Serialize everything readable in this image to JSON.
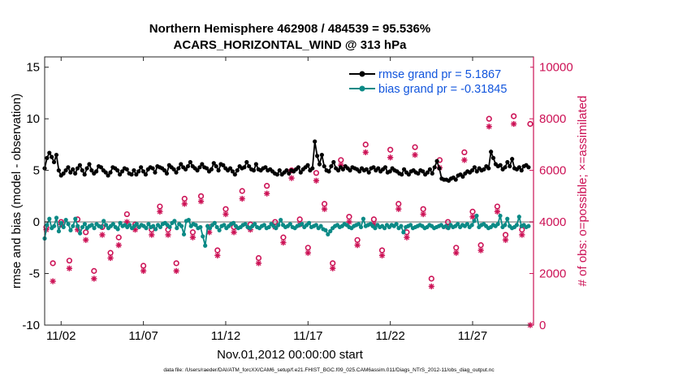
{
  "chart_data": {
    "type": "line",
    "title": "Northern Hemisphere 462908 / 484539 = 95.536%",
    "subtitle": "ACARS_HORIZONTAL_WIND @ 313 hPa",
    "xlabel": "Nov.01,2012 00:00:00 start",
    "ylabel_left": "rmse and bias (model - observation)",
    "ylabel_right": "# of obs: o=possible; ×=assimilated",
    "footer": "data file: /Users/raeder/DAI/ATM_forcXX/CAM6_setup/f.e21.FHIST_BGC.f09_025.CAM6assim.011/Diags_NTrS_2012-11/obs_diag_output.nc",
    "xlim": [
      0.5,
      30.2
    ],
    "ylim_left": [
      -10,
      16
    ],
    "ylim_right": [
      0,
      10400
    ],
    "x_ticks": [
      1.5,
      6.5,
      11.5,
      16.5,
      21.5,
      26.5
    ],
    "x_tick_labels": [
      "11/02",
      "11/07",
      "11/12",
      "11/17",
      "11/22",
      "11/27"
    ],
    "y_left_ticks": [
      -10,
      -5,
      0,
      5,
      10,
      15
    ],
    "y_left_tick_labels": [
      "-10",
      "-5",
      "0",
      "5",
      "10",
      "15"
    ],
    "y_right_ticks": [
      0,
      2000,
      4000,
      6000,
      8000,
      10000
    ],
    "y_right_tick_labels": [
      "0",
      "2000",
      "4000",
      "6000",
      "8000",
      "10000"
    ],
    "zero_line": 0,
    "legend_position": "top-right",
    "colors": {
      "rmse": "#000000",
      "bias": "#0b8a86",
      "obs": "#cc1155",
      "zero": "#b0b0b0"
    },
    "series": [
      {
        "name": "rmse grand pr = 5.1867",
        "key": "rmse",
        "values": [
          5.2,
          6.2,
          6.7,
          6.3,
          5.8,
          6.5,
          5.0,
          4.5,
          4.7,
          5.0,
          5.3,
          4.8,
          5.1,
          4.7,
          5.2,
          5.5,
          5.0,
          4.6,
          5.2,
          5.6,
          5.0,
          4.7,
          4.9,
          5.4,
          5.3,
          5.0,
          4.8,
          4.5,
          4.8,
          5.3,
          5.2,
          5.0,
          4.6,
          4.9,
          5.2,
          5.1,
          4.7,
          4.6,
          5.0,
          4.6,
          4.9,
          5.3,
          4.9,
          4.6,
          5.1,
          5.3,
          5.2,
          4.8,
          5.4,
          5.3,
          5.2,
          5.0,
          4.7,
          5.5,
          5.3,
          5.1,
          4.8,
          5.2,
          5.6,
          5.3,
          5.1,
          5.4,
          5.8,
          5.4,
          5.2,
          5.0,
          5.3,
          5.6,
          5.3,
          5.2,
          4.9,
          5.1,
          5.7,
          5.4,
          5.0,
          5.6,
          5.5,
          5.2,
          5.0,
          5.2,
          4.9,
          4.6,
          5.0,
          5.4,
          5.2,
          5.3,
          5.8,
          5.4,
          5.1,
          5.0,
          5.6,
          5.1,
          5.0,
          5.2,
          5.3,
          5.0,
          5.1,
          4.9,
          4.7,
          4.6,
          5.0,
          4.6,
          4.8,
          5.0,
          4.7,
          5.0,
          4.9,
          5.1,
          5.3,
          4.8,
          5.1,
          5.3,
          5.5,
          5.0,
          5.2,
          7.8,
          6.4,
          5.6,
          6.5,
          5.4,
          5.0,
          4.9,
          5.4,
          5.8,
          5.2,
          5.0,
          5.3,
          5.1,
          5.4,
          5.2,
          5.0,
          5.3,
          5.2,
          5.1,
          4.9,
          5.2,
          5.0,
          5.1,
          4.8,
          5.2,
          5.3,
          5.0,
          5.2,
          4.9,
          5.1,
          5.3,
          4.8,
          4.9,
          5.2,
          5.0,
          4.9,
          4.7,
          4.6,
          5.1,
          4.8,
          4.6,
          4.9,
          5.0,
          4.8,
          4.7,
          5.0,
          4.9,
          4.6,
          4.8,
          5.1,
          4.7,
          5.3,
          5.9,
          5.2,
          4.2,
          4.1,
          4.1,
          4.0,
          4.2,
          4.3,
          4.1,
          4.5,
          4.6,
          4.4,
          4.7,
          4.9,
          4.8,
          5.0,
          5.3,
          4.9,
          5.2,
          5.0,
          5.1,
          5.4,
          5.2,
          6.8,
          6.2,
          5.6,
          5.4,
          5.5,
          5.1,
          5.3,
          5.8,
          5.4,
          6.1,
          5.2,
          5.1,
          5.3,
          5.0,
          5.4,
          5.5,
          5.3
        ]
      },
      {
        "name": "bias grand pr = -0.31845",
        "key": "bias",
        "values": [
          -1.6,
          -0.3,
          0.3,
          -0.6,
          -0.4,
          0.4,
          -0.9,
          -0.1,
          -0.5,
          0.2,
          -0.2,
          -0.8,
          -0.4,
          0.3,
          -0.4,
          -1.1,
          -0.5,
          -0.2,
          -0.6,
          -0.4,
          -0.3,
          -0.6,
          -0.2,
          -0.4,
          -0.5,
          0.1,
          -0.3,
          -0.6,
          -0.4,
          -0.2,
          -0.5,
          -0.7,
          -0.1,
          -0.4,
          -0.3,
          -0.5,
          -0.3,
          -0.6,
          -0.4,
          -0.2,
          -0.5,
          -0.3,
          -0.4,
          -0.6,
          -0.2,
          -0.5,
          -0.4,
          -0.7,
          -0.3,
          -0.5,
          -0.2,
          -0.1,
          -0.3,
          -0.5,
          -0.1,
          0.1,
          -0.6,
          -0.2,
          -0.4,
          -1.2,
          0.1,
          0.2,
          -0.4,
          -0.2,
          -0.3,
          -0.6,
          -0.5,
          -1.4,
          -2.3,
          -0.4,
          -0.6,
          -0.3,
          -0.1,
          -0.5,
          -0.8,
          -0.4,
          -0.3,
          -0.6,
          -0.4,
          -0.2,
          -0.1,
          -0.4,
          -0.6,
          -0.5,
          -0.3,
          -0.2,
          -0.5,
          -0.6,
          -0.4,
          -0.2,
          -0.5,
          -0.6,
          -0.4,
          -0.3,
          -0.6,
          -0.5,
          -0.2,
          -0.4,
          -0.6,
          -0.3,
          0.2,
          -0.3,
          -0.5,
          -0.4,
          -0.2,
          -0.5,
          -0.6,
          -0.4,
          -0.3,
          -0.2,
          -0.5,
          -0.3,
          -0.1,
          -0.5,
          -0.4,
          -0.3,
          -0.6,
          -0.4,
          -0.7,
          -0.8,
          -1.2,
          -0.9,
          -0.6,
          -0.4,
          -0.3,
          -0.5,
          -0.4,
          -0.2,
          -0.3,
          -0.5,
          -0.6,
          -0.4,
          -0.3,
          -0.2,
          -0.5,
          0.3,
          -0.4,
          -0.3,
          -0.2,
          -0.4,
          -0.6,
          -0.3,
          -0.5,
          -0.4,
          -0.6,
          -0.3,
          -0.5,
          -0.3,
          -0.4,
          -0.2,
          -0.6,
          -0.4,
          -1.0,
          -0.5,
          -0.4,
          -0.3,
          -0.6,
          -0.5,
          -0.4,
          -0.3,
          -0.4,
          -0.6,
          -0.5,
          -0.3,
          -0.4,
          -0.6,
          -0.5,
          -0.4,
          -0.3,
          -0.5,
          -0.4,
          -0.6,
          -0.3,
          -0.5,
          -0.4,
          -0.2,
          -0.5,
          -0.3,
          -0.4,
          -0.2,
          -0.5,
          -0.3,
          0.1,
          0.6,
          -0.5,
          -0.3,
          -0.2,
          -0.4,
          -0.6,
          -0.5,
          -0.3,
          -0.4,
          -0.2,
          0.6,
          -0.5,
          -0.3,
          0.3,
          -0.4,
          -0.6,
          -0.5,
          -0.3,
          0.5,
          -0.4,
          -0.3,
          -0.5,
          -0.4
        ]
      },
      {
        "name": "obs possible",
        "key": "possible",
        "x": [
          0.6,
          1.0,
          1.5,
          2.0,
          2.5,
          3.0,
          3.5,
          4.0,
          4.5,
          5.0,
          5.5,
          6.0,
          6.5,
          7.0,
          7.5,
          8.0,
          8.5,
          9.0,
          9.5,
          10.0,
          10.5,
          11.0,
          11.5,
          12.0,
          12.5,
          13.0,
          13.5,
          14.0,
          14.5,
          15.0,
          15.5,
          16.0,
          16.5,
          17.0,
          17.5,
          18.0,
          18.5,
          19.0,
          19.5,
          20.0,
          20.5,
          21.0,
          21.5,
          22.0,
          22.5,
          23.0,
          23.5,
          24.0,
          24.5,
          25.0,
          25.5,
          26.0,
          26.5,
          27.0,
          27.5,
          28.0,
          28.5,
          29.0,
          29.5,
          30.0
        ],
        "values": [
          3800,
          2400,
          4000,
          2500,
          4100,
          3600,
          2100,
          3800,
          2800,
          3400,
          4300,
          3900,
          2300,
          3700,
          4600,
          3700,
          2400,
          4900,
          3600,
          5000,
          3800,
          2900,
          4500,
          3800,
          5200,
          3900,
          2600,
          5400,
          4000,
          3400,
          6000,
          4100,
          3000,
          5900,
          4700,
          2400,
          6400,
          4200,
          3300,
          7000,
          4100,
          2900,
          6800,
          4700,
          3600,
          6900,
          4500,
          1800,
          6400,
          4000,
          3000,
          6700,
          4400,
          3100,
          8000,
          4600,
          3500,
          8100,
          3700,
          7800
        ]
      },
      {
        "name": "obs assimilated",
        "key": "assimilated",
        "x": [
          0.6,
          1.0,
          1.5,
          2.0,
          2.5,
          3.0,
          3.5,
          4.0,
          4.5,
          5.0,
          5.5,
          6.0,
          6.5,
          7.0,
          7.5,
          8.0,
          8.5,
          9.0,
          9.5,
          10.0,
          10.5,
          11.0,
          11.5,
          12.0,
          12.5,
          13.0,
          13.5,
          14.0,
          14.5,
          15.0,
          15.5,
          16.0,
          16.5,
          17.0,
          17.5,
          18.0,
          18.5,
          19.0,
          19.5,
          20.0,
          20.5,
          21.0,
          21.5,
          22.0,
          22.5,
          23.0,
          23.5,
          24.0,
          24.5,
          25.0,
          25.5,
          26.0,
          26.5,
          27.0,
          27.5,
          28.0,
          28.5,
          29.0,
          29.5,
          30.0
        ],
        "values": [
          3700,
          1700,
          3900,
          2200,
          3700,
          3300,
          1800,
          3500,
          2600,
          3100,
          4000,
          3700,
          2100,
          3500,
          4400,
          3500,
          2100,
          4700,
          3400,
          4800,
          3600,
          2700,
          4300,
          3600,
          4900,
          3700,
          2400,
          5100,
          3800,
          3200,
          5700,
          3900,
          2800,
          5600,
          4500,
          2200,
          6200,
          4000,
          3100,
          6700,
          3900,
          2700,
          6500,
          4500,
          3400,
          6600,
          4300,
          1500,
          6100,
          3800,
          2800,
          6400,
          4200,
          2900,
          7700,
          4400,
          3300,
          7800,
          3500,
          0
        ]
      }
    ],
    "rmse_x_range": [
      0.5,
      29.9
    ],
    "bias_x_range": [
      0.5,
      29.9
    ]
  }
}
